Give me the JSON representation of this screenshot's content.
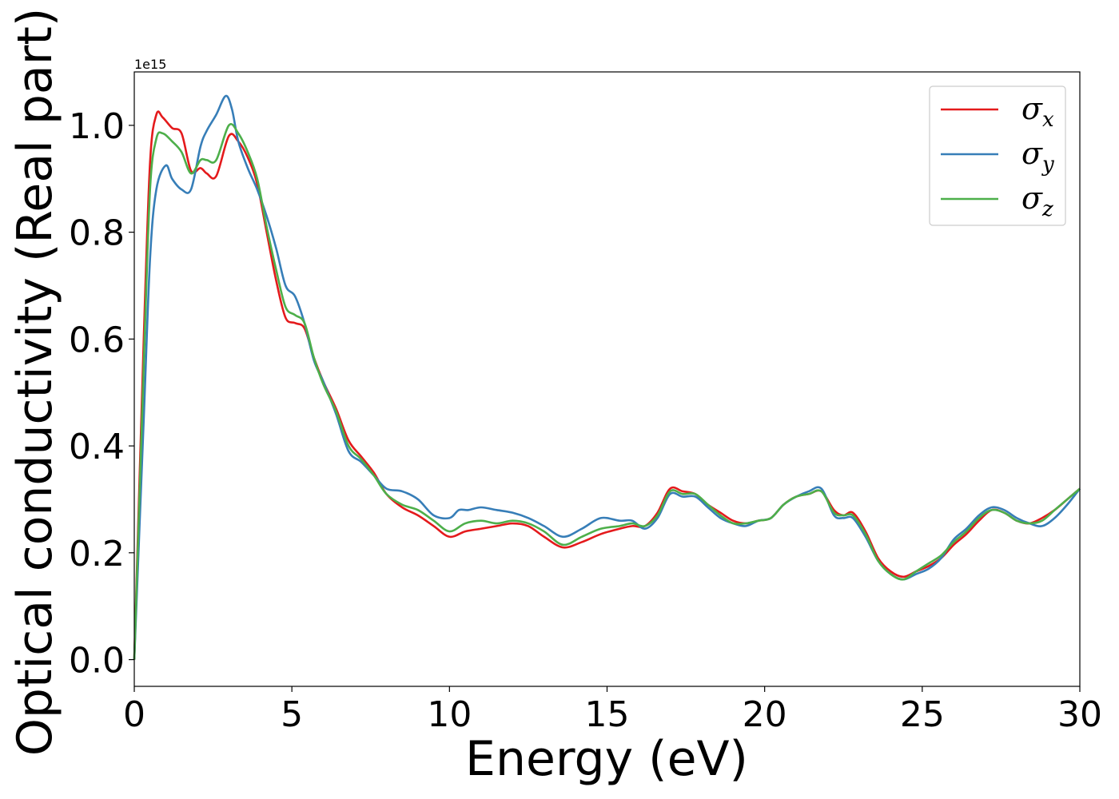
{
  "chart_data": {
    "type": "line",
    "title": "",
    "xlabel": "Energy (eV)",
    "ylabel": "Optical conductivity (Real part)",
    "y_offset_label": "1e15",
    "xlim": [
      0,
      30
    ],
    "ylim": [
      -0.05,
      1.1
    ],
    "xticks": [
      0,
      5,
      10,
      15,
      20,
      25,
      30
    ],
    "yticks": [
      0.0,
      0.2,
      0.4,
      0.6,
      0.8,
      1.0
    ],
    "ytick_labels": [
      "0.0",
      "0.2",
      "0.4",
      "0.6",
      "0.8",
      "1.0"
    ],
    "grid": false,
    "legend_position": "top-right",
    "series": [
      {
        "name": "σx",
        "sym": "σ",
        "sub": "x",
        "color": "#e41a1c",
        "x": [
          0,
          0.3,
          0.5,
          0.7,
          0.9,
          1.2,
          1.5,
          1.8,
          2.1,
          2.3,
          2.6,
          3.0,
          3.3,
          3.6,
          3.9,
          4.2,
          4.5,
          4.8,
          5.1,
          5.4,
          5.7,
          6.0,
          6.4,
          6.8,
          7.2,
          7.6,
          8.0,
          8.5,
          9.0,
          9.5,
          10.0,
          10.5,
          11.0,
          11.5,
          12.0,
          12.5,
          13.0,
          13.6,
          14.2,
          14.8,
          15.4,
          15.8,
          16.2,
          16.6,
          17.0,
          17.4,
          17.8,
          18.2,
          18.6,
          19.0,
          19.4,
          19.8,
          20.2,
          20.6,
          21.0,
          21.4,
          21.8,
          22.2,
          22.5,
          22.8,
          23.2,
          23.6,
          24.0,
          24.4,
          24.8,
          25.2,
          25.6,
          26.0,
          26.4,
          26.8,
          27.2,
          27.6,
          28.0,
          28.4,
          28.8,
          29.2,
          29.6,
          30.0
        ],
        "y": [
          0.0,
          0.6,
          0.93,
          1.02,
          1.015,
          0.995,
          0.985,
          0.915,
          0.92,
          0.91,
          0.905,
          0.98,
          0.97,
          0.94,
          0.89,
          0.8,
          0.71,
          0.64,
          0.63,
          0.62,
          0.565,
          0.52,
          0.47,
          0.41,
          0.38,
          0.35,
          0.31,
          0.285,
          0.27,
          0.25,
          0.23,
          0.24,
          0.245,
          0.25,
          0.255,
          0.25,
          0.23,
          0.21,
          0.22,
          0.235,
          0.245,
          0.25,
          0.25,
          0.275,
          0.32,
          0.315,
          0.31,
          0.29,
          0.275,
          0.26,
          0.255,
          0.26,
          0.265,
          0.29,
          0.305,
          0.31,
          0.315,
          0.28,
          0.27,
          0.275,
          0.24,
          0.19,
          0.165,
          0.155,
          0.165,
          0.175,
          0.19,
          0.215,
          0.235,
          0.26,
          0.28,
          0.275,
          0.26,
          0.255,
          0.265,
          0.28,
          0.3,
          0.32
        ]
      },
      {
        "name": "σy",
        "sym": "σ",
        "sub": "y",
        "color": "#377eb8",
        "x": [
          0,
          0.3,
          0.5,
          0.7,
          1.0,
          1.2,
          1.5,
          1.8,
          2.1,
          2.3,
          2.6,
          2.9,
          3.1,
          3.3,
          3.6,
          3.9,
          4.2,
          4.5,
          4.8,
          5.1,
          5.4,
          5.7,
          6.0,
          6.4,
          6.8,
          7.2,
          7.6,
          8.0,
          8.5,
          9.0,
          9.5,
          10.0,
          10.3,
          10.6,
          11.0,
          11.5,
          12.0,
          12.5,
          13.0,
          13.6,
          14.2,
          14.8,
          15.4,
          15.8,
          16.2,
          16.6,
          17.0,
          17.4,
          17.8,
          18.2,
          18.6,
          19.0,
          19.4,
          19.8,
          20.2,
          20.6,
          21.0,
          21.4,
          21.8,
          22.2,
          22.5,
          22.8,
          23.2,
          23.6,
          24.0,
          24.4,
          24.8,
          25.2,
          25.6,
          26.0,
          26.4,
          26.8,
          27.2,
          27.6,
          28.0,
          28.4,
          28.8,
          29.2,
          29.6,
          30.0
        ],
        "y": [
          0.0,
          0.45,
          0.75,
          0.88,
          0.925,
          0.9,
          0.88,
          0.88,
          0.96,
          0.99,
          1.02,
          1.055,
          1.03,
          0.97,
          0.92,
          0.88,
          0.83,
          0.77,
          0.7,
          0.68,
          0.63,
          0.56,
          0.52,
          0.46,
          0.39,
          0.37,
          0.345,
          0.32,
          0.315,
          0.3,
          0.27,
          0.265,
          0.28,
          0.28,
          0.285,
          0.28,
          0.275,
          0.265,
          0.25,
          0.23,
          0.245,
          0.265,
          0.26,
          0.26,
          0.245,
          0.265,
          0.31,
          0.305,
          0.305,
          0.285,
          0.265,
          0.255,
          0.25,
          0.26,
          0.265,
          0.29,
          0.305,
          0.315,
          0.32,
          0.27,
          0.265,
          0.265,
          0.23,
          0.185,
          0.16,
          0.15,
          0.16,
          0.17,
          0.19,
          0.225,
          0.245,
          0.27,
          0.285,
          0.28,
          0.265,
          0.255,
          0.25,
          0.265,
          0.29,
          0.32
        ]
      },
      {
        "name": "σz",
        "sym": "σ",
        "sub": "z",
        "color": "#4daf4a",
        "x": [
          0,
          0.3,
          0.5,
          0.7,
          0.9,
          1.2,
          1.5,
          1.8,
          2.1,
          2.3,
          2.6,
          3.0,
          3.3,
          3.6,
          3.9,
          4.2,
          4.5,
          4.8,
          5.1,
          5.4,
          5.7,
          6.0,
          6.4,
          6.8,
          7.2,
          7.6,
          8.0,
          8.5,
          9.0,
          9.5,
          10.0,
          10.5,
          11.0,
          11.5,
          12.0,
          12.5,
          13.0,
          13.6,
          14.2,
          14.8,
          15.4,
          15.8,
          16.2,
          16.6,
          17.0,
          17.4,
          17.8,
          18.2,
          18.6,
          19.0,
          19.4,
          19.8,
          20.2,
          20.6,
          21.0,
          21.4,
          21.8,
          22.2,
          22.5,
          22.8,
          23.2,
          23.6,
          24.0,
          24.4,
          24.8,
          25.2,
          25.6,
          26.0,
          26.4,
          26.8,
          27.2,
          27.6,
          28.0,
          28.4,
          28.8,
          29.2,
          29.6,
          30.0
        ],
        "y": [
          0.0,
          0.55,
          0.88,
          0.975,
          0.985,
          0.97,
          0.95,
          0.91,
          0.935,
          0.935,
          0.935,
          1.0,
          0.985,
          0.95,
          0.9,
          0.81,
          0.73,
          0.66,
          0.645,
          0.63,
          0.565,
          0.515,
          0.465,
          0.4,
          0.375,
          0.345,
          0.31,
          0.29,
          0.28,
          0.26,
          0.24,
          0.255,
          0.26,
          0.255,
          0.26,
          0.255,
          0.24,
          0.215,
          0.23,
          0.245,
          0.25,
          0.255,
          0.25,
          0.27,
          0.315,
          0.31,
          0.31,
          0.29,
          0.27,
          0.255,
          0.255,
          0.26,
          0.265,
          0.29,
          0.305,
          0.31,
          0.315,
          0.275,
          0.27,
          0.27,
          0.235,
          0.185,
          0.16,
          0.15,
          0.165,
          0.18,
          0.195,
          0.22,
          0.24,
          0.265,
          0.28,
          0.275,
          0.26,
          0.255,
          0.26,
          0.28,
          0.3,
          0.32
        ]
      }
    ]
  }
}
